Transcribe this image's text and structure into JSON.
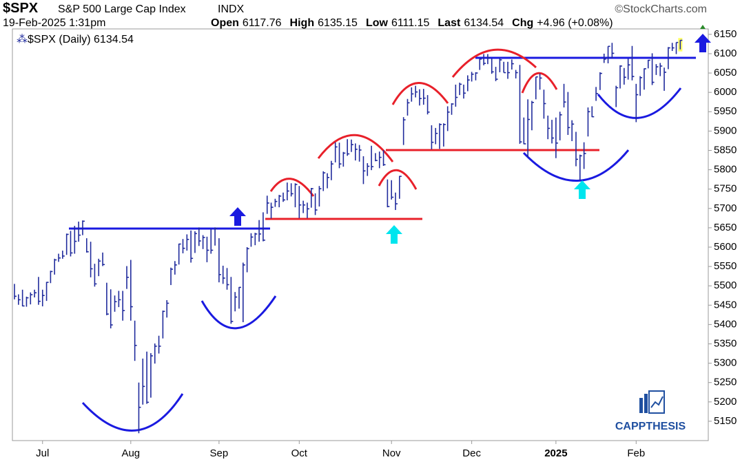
{
  "header": {
    "symbol": "$SPX",
    "name": "S&P 500 Large Cap Index",
    "exchange": "INDX",
    "source": "©StockCharts.com",
    "datetime": "19-Feb-2025 1:31pm",
    "quote": [
      {
        "label": "Open",
        "value": 6117.76
      },
      {
        "label": "High",
        "value": 6135.15
      },
      {
        "label": "Low",
        "value": 6111.15
      },
      {
        "label": "Last",
        "value": 6134.54
      },
      {
        "label": "Chg",
        "value": "+4.96 (+0.08%)"
      }
    ]
  },
  "watermark": "CAPPTHESIS",
  "chart_data": {
    "type": "hlc",
    "categories": [
      null,
      null,
      null,
      null,
      null,
      null,
      null,
      "Jul",
      null,
      null,
      null,
      null,
      null,
      null,
      null,
      null,
      null,
      null,
      null,
      null,
      null,
      null,
      null,
      null,
      null,
      null,
      null,
      null,
      null,
      "Aug",
      null,
      null,
      null,
      null,
      null,
      null,
      null,
      null,
      null,
      null,
      null,
      null,
      null,
      null,
      null,
      null,
      null,
      null,
      null,
      null,
      null,
      "Sep",
      null,
      null,
      null,
      null,
      null,
      null,
      null,
      null,
      null,
      null,
      null,
      null,
      null,
      null,
      null,
      null,
      null,
      null,
      null,
      "Oct",
      null,
      null,
      null,
      null,
      null,
      null,
      null,
      null,
      null,
      null,
      null,
      null,
      null,
      null,
      null,
      null,
      null,
      null,
      null,
      null,
      null,
      null,
      "Nov",
      null,
      null,
      null,
      null,
      null,
      null,
      null,
      null,
      null,
      null,
      null,
      null,
      null,
      null,
      null,
      null,
      null,
      null,
      null,
      "Dec",
      null,
      null,
      null,
      null,
      null,
      null,
      null,
      null,
      null,
      null,
      null,
      null,
      null,
      null,
      null,
      null,
      null,
      null,
      null,
      null,
      "2025",
      null,
      null,
      null,
      null,
      null,
      null,
      null,
      null,
      null,
      null,
      null,
      null,
      null,
      null,
      null,
      null,
      null,
      null,
      null,
      "Feb",
      null,
      null,
      null,
      null,
      null,
      null,
      null,
      null,
      null,
      null,
      null
    ],
    "series": [
      {
        "name": "$SPX (Daily) 6134.54",
        "color": "#1f2a9c",
        "high": [
          5505,
          5478,
          5490,
          5472,
          5483,
          5490,
          5523,
          5490,
          5510,
          5539,
          5570,
          5583,
          5591,
          5635,
          5642,
          5655,
          5666,
          5669,
          5623,
          5614,
          5557,
          5570,
          5586,
          5508,
          5491,
          5475,
          5487,
          5487,
          5551,
          5567,
          5410,
          5250,
          5312,
          5330,
          5326,
          5351,
          5371,
          5436,
          5463,
          5547,
          5564,
          5609,
          5621,
          5633,
          5643,
          5641,
          5651,
          5631,
          5627,
          5647,
          5651,
          5623,
          5552,
          5546,
          5523,
          5484,
          5497,
          5560,
          5600,
          5636,
          5637,
          5670,
          5690,
          5733,
          5715,
          5725,
          5735,
          5741,
          5767,
          5765,
          5765,
          5758,
          5720,
          5715,
          5753,
          5739,
          5758,
          5796,
          5791,
          5823,
          5871,
          5870,
          5846,
          5879,
          5878,
          5868,
          5864,
          5835,
          5817,
          5862,
          5843,
          5847,
          5851,
          5775,
          5773,
          5741,
          5784,
          5936,
          5983,
          6013,
          6017,
          6008,
          6009,
          5993,
          5915,
          5908,
          5920,
          5920,
          5964,
          5972,
          6020,
          6025,
          6020,
          6044,
          6053,
          6052,
          6088,
          6099,
          6099,
          6088,
          6066,
          6089,
          6079,
          6079,
          6085,
          6058,
          6071,
          5935,
          5982,
          5978,
          6040,
          6049,
          6007,
          5940,
          5929,
          5935,
          5950,
          6022,
          6001,
          5928,
          5898,
          5839,
          5871,
          5961,
          5964,
          6014,
          6052,
          6100,
          6119,
          6128,
          6017,
          6070,
          6063,
          6087,
          6120,
          6022,
          6042,
          6062,
          6084,
          6101,
          6073,
          6076,
          6064,
          6117,
          6128,
          6129,
          6135.15
        ],
        "low": [
          5465,
          5451,
          5447,
          5446,
          5452,
          5470,
          5451,
          5447,
          5461,
          5507,
          5529,
          5562,
          5570,
          5580,
          5576,
          5583,
          5614,
          5631,
          5586,
          5522,
          5498,
          5525,
          5551,
          5424,
          5390,
          5433,
          5445,
          5410,
          5492,
          5410,
          5306,
          5119,
          5193,
          5195,
          5211,
          5299,
          5325,
          5364,
          5418,
          5502,
          5529,
          5555,
          5584,
          5591,
          5560,
          5585,
          5603,
          5595,
          5561,
          5583,
          5604,
          5509,
          5505,
          5490,
          5402,
          5434,
          5441,
          5406,
          5535,
          5601,
          5605,
          5614,
          5615,
          5686,
          5674,
          5704,
          5703,
          5717,
          5721,
          5731,
          5703,
          5675,
          5688,
          5675,
          5702,
          5683,
          5705,
          5745,
          5752,
          5773,
          5819,
          5804,
          5808,
          5836,
          5846,
          5824,
          5821,
          5763,
          5784,
          5799,
          5822,
          5804,
          5810,
          5703,
          5723,
          5696,
          5725,
          5864,
          5940,
          5976,
          5987,
          5966,
          5968,
          5943,
          5853,
          5866,
          5854,
          5860,
          5900,
          5942,
          5963,
          5993,
          5984,
          6003,
          6028,
          6031,
          6058,
          6070,
          6073,
          6048,
          6029,
          6052,
          6051,
          6035,
          6059,
          6036,
          5867,
          5866,
          5832,
          5902,
          5982,
          6007,
          5932,
          5879,
          5868,
          5830,
          5876,
          5961,
          5890,
          5874,
          5809,
          5773,
          5802,
          5886,
          5936,
          5978,
          6006,
          6076,
          6075,
          6088,
          5962,
          6010,
          6020,
          6033,
          6031,
          5923,
          5991,
          6007,
          6062,
          6019,
          6045,
          6042,
          6004,
          6060,
          6107,
          6099,
          6111.15
        ],
        "close": [
          5473,
          5464,
          5448,
          5469,
          5477,
          5482,
          5460,
          5475,
          5509,
          5537,
          5567,
          5572,
          5577,
          5633,
          5585,
          5615,
          5631,
          5667,
          5588,
          5544,
          5505,
          5564,
          5555,
          5427,
          5399,
          5459,
          5464,
          5436,
          5522,
          5446,
          5346,
          5186,
          5240,
          5199,
          5319,
          5344,
          5344,
          5434,
          5455,
          5543,
          5554,
          5608,
          5597,
          5620,
          5571,
          5635,
          5616,
          5625,
          5592,
          5592,
          5648,
          5529,
          5520,
          5503,
          5408,
          5471,
          5496,
          5554,
          5596,
          5626,
          5634,
          5634,
          5618,
          5714,
          5703,
          5718,
          5732,
          5722,
          5745,
          5738,
          5762,
          5709,
          5709,
          5699,
          5751,
          5696,
          5751,
          5792,
          5780,
          5815,
          5859,
          5815,
          5843,
          5841,
          5865,
          5853,
          5851,
          5797,
          5809,
          5808,
          5824,
          5832,
          5813,
          5705,
          5729,
          5712,
          5783,
          5929,
          5973,
          5996,
          6001,
          5984,
          5985,
          5949,
          5871,
          5894,
          5917,
          5917,
          5949,
          5970,
          5987,
          6021,
          5998,
          6032,
          6047,
          6050,
          6086,
          6075,
          6090,
          6053,
          6034,
          6084,
          6051,
          6051,
          6074,
          6051,
          5872,
          5867,
          5930,
          5974,
          6040,
          6037,
          5971,
          5907,
          5882,
          5869,
          5942,
          5975,
          5909,
          5918,
          5827,
          5836,
          5842,
          5950,
          5937,
          5997,
          6049,
          6086,
          6119,
          6101,
          6012,
          6068,
          6039,
          6071,
          6041,
          5994,
          6038,
          6061,
          6083,
          6026,
          6066,
          6068,
          6052,
          6115,
          6115,
          6129,
          6134.54
        ]
      }
    ],
    "ylim": [
      5100,
      6164
    ],
    "yticks": [
      5150,
      5200,
      5250,
      5300,
      5350,
      5400,
      5450,
      5500,
      5550,
      5600,
      5650,
      5700,
      5750,
      5800,
      5850,
      5900,
      5950,
      6000,
      6050,
      6100,
      6150
    ],
    "grid": false
  }
}
